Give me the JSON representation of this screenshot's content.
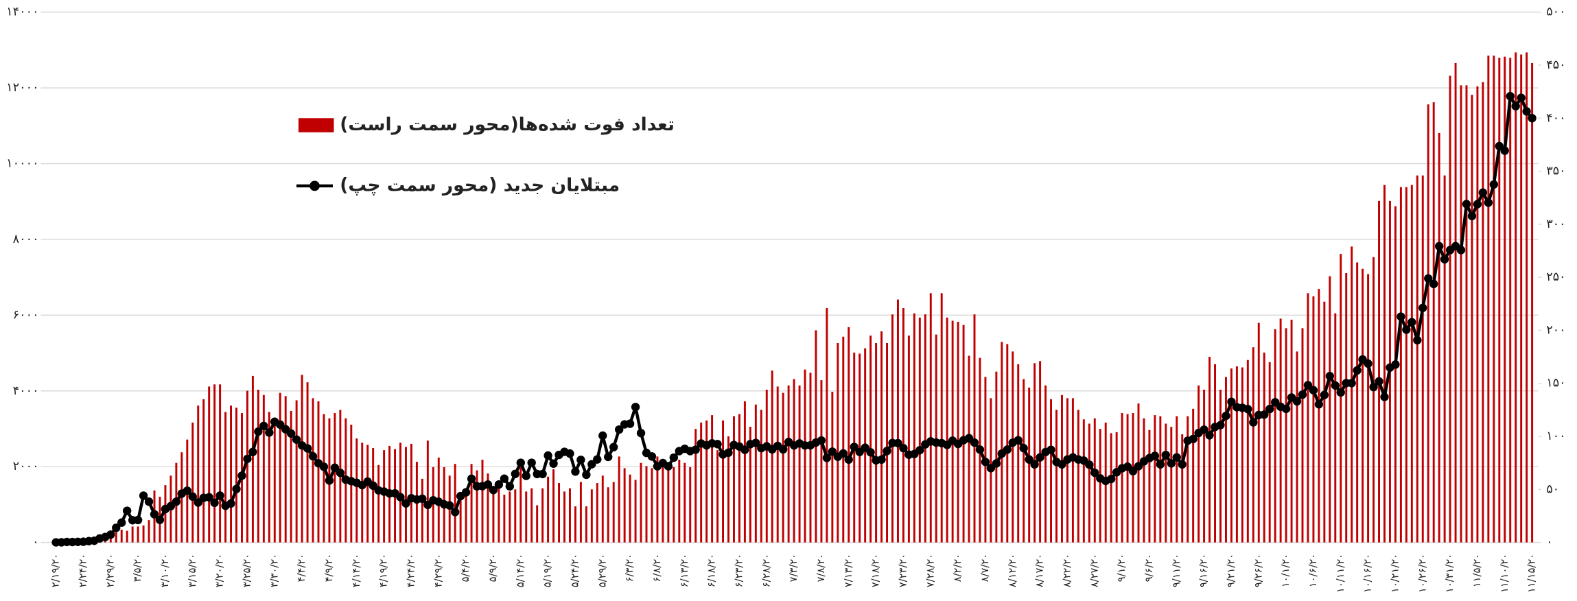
{
  "chart_data": {
    "type": "bar",
    "categories": [
      "۲/۱۹/۲۰",
      null,
      null,
      null,
      null,
      "۲/۲۴/۲۰",
      null,
      null,
      null,
      null,
      "۲/۲۹/۲۰",
      null,
      null,
      null,
      null,
      "۳/۵/۲۰",
      null,
      null,
      null,
      null,
      "۳/۱۰/۲۰",
      null,
      null,
      null,
      null,
      "۳/۱۵/۲۰",
      null,
      null,
      null,
      null,
      "۳/۲۰/۲۰",
      null,
      null,
      null,
      null,
      "۳/۲۵/۲۰",
      null,
      null,
      null,
      null,
      "۳/۳۰/۲۰",
      null,
      null,
      null,
      null,
      "۴/۴/۲۰",
      null,
      null,
      null,
      null,
      "۴/۹/۲۰",
      null,
      null,
      null,
      null,
      "۴/۱۴/۲۰",
      null,
      null,
      null,
      null,
      "۴/۱۹/۲۰",
      null,
      null,
      null,
      null,
      "۴/۲۴/۲۰",
      null,
      null,
      null,
      null,
      "۴/۲۹/۲۰",
      null,
      null,
      null,
      null,
      "۵/۴/۲۰",
      null,
      null,
      null,
      null,
      "۵/۹/۲۰",
      null,
      null,
      null,
      null,
      "۵/۱۴/۲۰",
      null,
      null,
      null,
      null,
      "۵/۱۹/۲۰",
      null,
      null,
      null,
      null,
      "۵/۲۴/۲۰",
      null,
      null,
      null,
      null,
      "۵/۲۹/۲۰",
      null,
      null,
      null,
      null,
      "۶/۳/۲۰",
      null,
      null,
      null,
      null,
      "۶/۸/۲۰",
      null,
      null,
      null,
      null,
      "۶/۱۳/۲۰",
      null,
      null,
      null,
      null,
      "۶/۱۸/۲۰",
      null,
      null,
      null,
      null,
      "۶/۲۳/۲۰",
      null,
      null,
      null,
      null,
      "۶/۲۸/۲۰",
      null,
      null,
      null,
      null,
      "۷/۳/۲۰",
      null,
      null,
      null,
      null,
      "۷/۸/۲۰",
      null,
      null,
      null,
      null,
      "۷/۱۳/۲۰",
      null,
      null,
      null,
      null,
      "۷/۱۸/۲۰",
      null,
      null,
      null,
      null,
      "۷/۲۳/۲۰",
      null,
      null,
      null,
      null,
      "۷/۲۸/۲۰",
      null,
      null,
      null,
      null,
      "۸/۲/۲۰",
      null,
      null,
      null,
      null,
      "۸/۷/۲۰",
      null,
      null,
      null,
      null,
      "۸/۱۲/۲۰",
      null,
      null,
      null,
      null,
      "۸/۱۷/۲۰",
      null,
      null,
      null,
      null,
      "۸/۲۲/۲۰",
      null,
      null,
      null,
      null,
      "۸/۲۷/۲۰",
      null,
      null,
      null,
      null,
      "۹/۱/۲۰",
      null,
      null,
      null,
      null,
      "۹/۶/۲۰",
      null,
      null,
      null,
      null,
      "۹/۱۱/۲۰",
      null,
      null,
      null,
      null,
      "۹/۱۶/۲۰",
      null,
      null,
      null,
      null,
      "۹/۲۱/۲۰",
      null,
      null,
      null,
      null,
      "۹/۲۶/۲۰",
      null,
      null,
      null,
      null,
      "۱۰/۱/۲۰",
      null,
      null,
      null,
      null,
      "۱۰/۶/۲۰",
      null,
      null,
      null,
      null,
      "۱۰/۱۱/۲۰",
      null,
      null,
      null,
      null,
      "۱۰/۱۶/۲۰",
      null,
      null,
      null,
      null,
      "۱۰/۲۱/۲۰",
      null,
      null,
      null,
      null,
      "۱۰/۲۶/۲۰",
      null,
      null,
      null,
      null,
      "۱۰/۳۱/۲۰",
      null,
      null,
      null,
      null,
      "۱۱/۵/۲۰",
      null,
      null,
      null,
      null,
      "۱۱/۱۰/۲۰",
      null,
      null,
      null,
      null,
      "۱۱/۱۵/۲۰"
    ],
    "series": [
      {
        "name": "تعداد فوت شده‌ها(محور سمت راست)",
        "type": "bar",
        "axis": "y2",
        "color": "#c00000",
        "values": [
          2,
          0,
          2,
          1,
          3,
          4,
          3,
          0,
          7,
          8,
          4,
          11,
          12,
          11,
          15,
          15,
          16,
          21,
          49,
          43,
          54,
          63,
          75,
          85,
          97,
          113,
          129,
          135,
          147,
          149,
          149,
          123,
          129,
          127,
          122,
          143,
          157,
          144,
          139,
          123,
          117,
          141,
          138,
          124,
          134,
          158,
          151,
          136,
          133,
          121,
          117,
          122,
          125,
          117,
          111,
          98,
          94,
          92,
          89,
          73,
          87,
          91,
          88,
          94,
          90,
          93,
          76,
          60,
          96,
          71,
          80,
          71,
          63,
          74,
          47,
          47,
          74,
          68,
          78,
          65,
          48,
          55,
          45,
          48,
          50,
          71,
          48,
          51,
          35,
          51,
          62,
          69,
          56,
          48,
          51,
          34,
          57,
          34,
          50,
          56,
          63,
          52,
          57,
          81,
          70,
          64,
          59,
          75,
          72,
          70,
          81,
          74,
          75,
          71,
          78,
          75,
          71,
          107,
          113,
          115,
          120,
          87,
          115,
          100,
          119,
          121,
          133,
          109,
          130,
          125,
          144,
          162,
          147,
          141,
          148,
          154,
          148,
          163,
          160,
          200,
          153,
          221,
          142,
          188,
          194,
          203,
          179,
          178,
          183,
          195,
          188,
          199,
          188,
          215,
          229,
          221,
          195,
          216,
          212,
          215,
          235,
          196,
          235,
          212,
          209,
          208,
          205,
          176,
          215,
          174,
          156,
          136,
          161,
          189,
          187,
          180,
          168,
          154,
          146,
          169,
          171,
          148,
          135,
          125,
          139,
          136,
          136,
          125,
          116,
          112,
          117,
          107,
          113,
          103,
          104,
          122,
          121,
          122,
          131,
          117,
          106,
          120,
          119,
          112,
          109,
          119,
          102,
          119,
          126,
          148,
          144,
          175,
          168,
          144,
          156,
          164,
          166,
          165,
          172,
          184,
          207,
          179,
          170,
          201,
          211,
          202,
          210,
          180,
          202,
          235,
          232,
          239,
          227,
          251,
          216,
          272,
          254,
          279,
          264,
          258,
          253,
          269,
          322,
          337,
          322,
          317,
          335,
          335,
          337,
          346,
          346,
          413,
          415,
          386,
          346,
          440,
          452,
          431,
          431,
          422,
          430,
          434,
          459,
          459,
          457,
          458,
          457,
          462,
          460,
          462,
          452
        ]
      },
      {
        "name": "مبتلایان جدید (محور سمت چپ)",
        "type": "line",
        "axis": "y",
        "color": "#000000",
        "values": [
          2,
          3,
          13,
          10,
          15,
          18,
          34,
          44,
          106,
          143,
          205,
          385,
          523,
          835,
          586,
          591,
          1234,
          1076,
          743,
          595,
          881,
          958,
          1075,
          1289,
          1365,
          1209,
          1053,
          1178,
          1192,
          1046,
          1237,
          966,
          1028,
          1411,
          1762,
          2206,
          2389,
          2926,
          3076,
          2901,
          3186,
          3110,
          2987,
          2875,
          2715,
          2560,
          2483,
          2274,
          2089,
          1997,
          1634,
          1972,
          1837,
          1657,
          1617,
          1574,
          1512,
          1606,
          1499,
          1374,
          1343,
          1294,
          1297,
          1194,
          1030,
          1168,
          1134,
          1153,
          991,
          1112,
          1073,
          1006,
          976,
          802,
          1223,
          1323,
          1680,
          1481,
          1485,
          1529,
          1383,
          1529,
          1683,
          1481,
          1808,
          2102,
          1757,
          2102,
          1806,
          1806,
          2294,
          2080,
          2311,
          2392,
          2346,
          1869,
          2180,
          1787,
          2064,
          2191,
          2819,
          2258,
          2516,
          2979,
          3117,
          3134,
          3574,
          2886,
          2364,
          2269,
          2011,
          2095,
          2011,
          2238,
          2410,
          2472,
          2410,
          2449,
          2612,
          2563,
          2615,
          2595,
          2322,
          2368,
          2573,
          2531,
          2445,
          2595,
          2628,
          2489,
          2536,
          2457,
          2549,
          2457,
          2652,
          2560,
          2613,
          2560,
          2563,
          2637,
          2691,
          2232,
          2397,
          2262,
          2349,
          2186,
          2521,
          2388,
          2500,
          2379,
          2166,
          2186,
          2414,
          2625,
          2621,
          2489,
          2316,
          2333,
          2434,
          2587,
          2667,
          2636,
          2621,
          2574,
          2685,
          2598,
          2698,
          2751,
          2634,
          2450,
          2125,
          1960,
          2085,
          2345,
          2450,
          2634,
          2698,
          2489,
          2190,
          2061,
          2245,
          2385,
          2444,
          2125,
          2061,
          2190,
          2245,
          2190,
          2160,
          2053,
          1840,
          1690,
          1625,
          1675,
          1852,
          1958,
          2000,
          1882,
          2012,
          2140,
          2226,
          2285,
          2061,
          2308,
          2087,
          2245,
          2059,
          2686,
          2731,
          2889,
          2977,
          2828,
          3049,
          3097,
          3341,
          3712,
          3569,
          3553,
          3521,
          3170,
          3362,
          3375,
          3521,
          3701,
          3582,
          3526,
          3825,
          3723,
          3902,
          4151,
          4019,
          3646,
          3892,
          4392,
          4142,
          3960,
          4206,
          4206,
          4541,
          4830,
          4721,
          4103,
          4251,
          3841,
          4616,
          4696,
          5960,
          5616,
          5814,
          5339,
          6191,
          6968,
          6824,
          7820,
          7475,
          7719,
          7820,
          7719,
          8932,
          8616,
          8930,
          9236,
          8970,
          9450,
          10463,
          10343,
          11780,
          11517,
          11737,
          11380,
          11200
        ]
      }
    ],
    "ylim": [
      0,
      14000
    ],
    "yticks": [
      {
        "value": 0,
        "label": "۰"
      },
      {
        "value": 2000,
        "label": "۲۰۰۰"
      },
      {
        "value": 4000,
        "label": "۴۰۰۰"
      },
      {
        "value": 6000,
        "label": "۶۰۰۰"
      },
      {
        "value": 8000,
        "label": "۸۰۰۰"
      },
      {
        "value": 10000,
        "label": "۱۰۰۰۰"
      },
      {
        "value": 12000,
        "label": "۱۲۰۰۰"
      },
      {
        "value": 14000,
        "label": "۱۴۰۰۰"
      }
    ],
    "y2lim": [
      0,
      500
    ],
    "y2ticks": [
      {
        "value": 0,
        "label": "۰"
      },
      {
        "value": 50,
        "label": "۵۰"
      },
      {
        "value": 100,
        "label": "۱۰۰"
      },
      {
        "value": 150,
        "label": "۱۵۰"
      },
      {
        "value": 200,
        "label": "۲۰۰"
      },
      {
        "value": 250,
        "label": "۲۵۰"
      },
      {
        "value": 300,
        "label": "۳۰۰"
      },
      {
        "value": 350,
        "label": "۳۵۰"
      },
      {
        "value": 400,
        "label": "۴۰۰"
      },
      {
        "value": 450,
        "label": "۴۵۰"
      },
      {
        "value": 500,
        "label": "۵۰۰"
      }
    ],
    "grid": true,
    "legend": "top-left"
  }
}
